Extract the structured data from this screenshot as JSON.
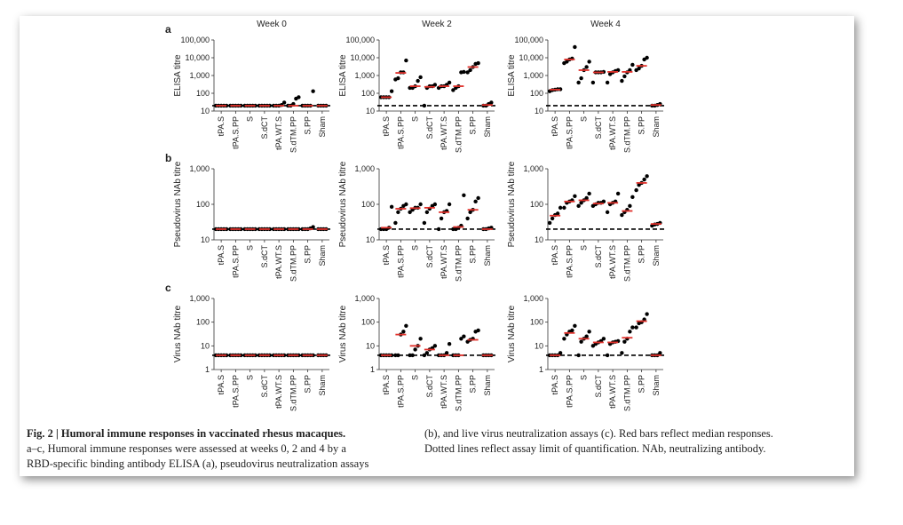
{
  "chart_data": [
    {
      "type": "dot",
      "title": "Week 0",
      "panel": "a",
      "ylabel": "ELISA titre",
      "categories": [
        "tPA.S",
        "tPA.S.PP",
        "S",
        "S.dCT",
        "tPA.WT.S",
        "S.dTM.PP",
        "S.PP",
        "Sham"
      ],
      "points": [
        [
          20,
          20,
          20,
          20,
          20
        ],
        [
          20,
          20,
          20,
          20,
          20
        ],
        [
          20,
          20,
          20,
          20,
          20
        ],
        [
          20,
          20,
          20,
          20,
          20
        ],
        [
          20,
          20,
          20,
          22,
          30
        ],
        [
          20,
          20,
          25,
          50,
          60
        ],
        [
          20,
          20,
          20,
          20,
          130
        ],
        [
          20,
          20,
          20,
          20
        ]
      ],
      "medians": [
        20,
        20,
        20,
        20,
        20,
        20,
        20,
        20
      ],
      "median_color": "#e0302a",
      "point_color": "#000000",
      "log": true,
      "reference_line": 20,
      "ylim": [
        10,
        100000
      ],
      "yticks": [
        10,
        100,
        {
          "value": 1000,
          "label": "1,000"
        },
        {
          "value": 10000,
          "label": "10,000"
        },
        {
          "value": 100000,
          "label": "100,000"
        }
      ]
    },
    {
      "type": "dot",
      "title": "Week 2",
      "ylabel": "ELISA titre",
      "categories": [
        "tPA.S",
        "tPA.S.PP",
        "S",
        "S.dCT",
        "tPA.WT.S",
        "S.dTM.PP",
        "S.PP",
        "Sham"
      ],
      "points": [
        [
          60,
          60,
          60,
          60,
          130
        ],
        [
          600,
          700,
          1500,
          1500,
          7000
        ],
        [
          200,
          200,
          250,
          500,
          800
        ],
        [
          20,
          200,
          250,
          250,
          300
        ],
        [
          200,
          250,
          250,
          300,
          400
        ],
        [
          150,
          200,
          250,
          1500,
          1600
        ],
        [
          1500,
          2000,
          3000,
          4500,
          5000
        ],
        [
          20,
          20,
          25,
          30
        ]
      ],
      "medians": [
        60,
        1400,
        250,
        230,
        250,
        250,
        3000,
        22
      ],
      "median_color": "#e0302a",
      "point_color": "#000000",
      "log": true,
      "reference_line": 20,
      "ylim": [
        10,
        100000
      ],
      "yticks": [
        10,
        100,
        {
          "value": 1000,
          "label": "1,000"
        },
        {
          "value": 10000,
          "label": "10,000"
        },
        {
          "value": 100000,
          "label": "100,000"
        }
      ]
    },
    {
      "type": "dot",
      "title": "Week 4",
      "ylabel": "ELISA titre",
      "categories": [
        "tPA.S",
        "tPA.S.PP",
        "S",
        "S.dCT",
        "tPA.WT.S",
        "S.dTM.PP",
        "S.PP",
        "Sham"
      ],
      "points": [
        [
          130,
          150,
          160,
          170,
          170
        ],
        [
          5000,
          6000,
          8000,
          9000,
          40000
        ],
        [
          400,
          700,
          2000,
          3000,
          6000
        ],
        [
          400,
          1500,
          1500,
          1500,
          1600
        ],
        [
          400,
          1200,
          1500,
          1800,
          2000
        ],
        [
          500,
          900,
          1500,
          2000,
          4000
        ],
        [
          2000,
          2500,
          3500,
          8000,
          10000
        ],
        [
          20,
          20,
          22,
          25
        ]
      ],
      "medians": [
        160,
        8000,
        2000,
        1500,
        1600,
        1600,
        3500,
        22
      ],
      "median_color": "#e0302a",
      "point_color": "#000000",
      "log": true,
      "reference_line": 20,
      "ylim": [
        10,
        100000
      ],
      "yticks": [
        10,
        100,
        {
          "value": 1000,
          "label": "1,000"
        },
        {
          "value": 10000,
          "label": "10,000"
        },
        {
          "value": 100000,
          "label": "100,000"
        }
      ]
    },
    {
      "type": "dot",
      "panel": "b",
      "ylabel": "Pseudovirus NAb titre",
      "categories": [
        "tPA.S",
        "tPA.S.PP",
        "S",
        "S.dCT",
        "tPA.WT.S",
        "S.dTM.PP",
        "S.PP",
        "Sham"
      ],
      "points": [
        [
          20,
          20,
          20,
          20,
          20
        ],
        [
          20,
          20,
          20,
          20,
          20
        ],
        [
          20,
          20,
          20,
          20,
          20
        ],
        [
          20,
          20,
          20,
          20,
          20
        ],
        [
          20,
          20,
          20,
          20,
          20
        ],
        [
          20,
          20,
          20,
          20,
          20
        ],
        [
          20,
          20,
          20,
          21,
          23
        ],
        [
          20,
          20,
          20,
          20
        ]
      ],
      "medians": [
        20,
        20,
        20,
        20,
        20,
        20,
        20,
        20
      ],
      "median_color": "#e0302a",
      "point_color": "#000000",
      "log": true,
      "reference_line": 20,
      "ylim": [
        10,
        1000
      ],
      "yticks": [
        10,
        100,
        {
          "value": 1000,
          "label": "1,000"
        }
      ]
    },
    {
      "type": "dot",
      "ylabel": "Pseudovirus NAb titre",
      "categories": [
        "tPA.S",
        "tPA.S.PP",
        "S",
        "S.dCT",
        "tPA.WT.S",
        "S.dTM.PP",
        "S.PP",
        "Sham"
      ],
      "points": [
        [
          20,
          20,
          20,
          22,
          85
        ],
        [
          30,
          60,
          75,
          90,
          100
        ],
        [
          60,
          70,
          80,
          80,
          100
        ],
        [
          30,
          60,
          75,
          90,
          100
        ],
        [
          20,
          40,
          60,
          65,
          100
        ],
        [
          20,
          20,
          22,
          25,
          180
        ],
        [
          40,
          60,
          70,
          120,
          150
        ],
        [
          20,
          20,
          21,
          22
        ]
      ],
      "medians": [
        22,
        75,
        78,
        80,
        60,
        23,
        70,
        20
      ],
      "median_color": "#e0302a",
      "point_color": "#000000",
      "log": true,
      "reference_line": 20,
      "ylim": [
        10,
        1000
      ],
      "yticks": [
        10,
        100,
        {
          "value": 1000,
          "label": "1,000"
        }
      ]
    },
    {
      "type": "dot",
      "ylabel": "Pseudovirus NAb titre",
      "categories": [
        "tPA.S",
        "tPA.S.PP",
        "S",
        "S.dCT",
        "tPA.WT.S",
        "S.dTM.PP",
        "S.PP",
        "Sham"
      ],
      "points": [
        [
          30,
          40,
          50,
          55,
          80
        ],
        [
          80,
          110,
          120,
          130,
          170
        ],
        [
          90,
          110,
          130,
          150,
          200
        ],
        [
          90,
          100,
          110,
          110,
          120
        ],
        [
          60,
          100,
          110,
          120,
          200
        ],
        [
          50,
          60,
          70,
          90,
          160
        ],
        [
          250,
          350,
          400,
          500,
          620
        ],
        [
          25,
          27,
          28,
          30
        ]
      ],
      "medians": [
        48,
        120,
        130,
        105,
        110,
        65,
        400,
        28
      ],
      "median_color": "#e0302a",
      "point_color": "#000000",
      "log": true,
      "reference_line": 20,
      "ylim": [
        10,
        1000
      ],
      "yticks": [
        10,
        100,
        {
          "value": 1000,
          "label": "1,000"
        }
      ]
    },
    {
      "type": "dot",
      "panel": "c",
      "ylabel": "Virus NAb titre",
      "categories": [
        "tPA.S",
        "tPA.S.PP",
        "S",
        "S.dCT",
        "tPA.WT.S",
        "S.dTM.PP",
        "S.PP",
        "Sham"
      ],
      "points": [
        [
          4,
          4,
          4,
          4,
          4
        ],
        [
          4,
          4,
          4,
          4,
          4
        ],
        [
          4,
          4,
          4,
          4,
          4
        ],
        [
          4,
          4,
          4,
          4,
          4
        ],
        [
          4,
          4,
          4,
          4,
          4
        ],
        [
          4,
          4,
          4,
          4,
          4
        ],
        [
          4,
          4,
          4,
          4,
          4
        ],
        [
          4,
          4,
          4,
          4
        ]
      ],
      "medians": [
        4,
        4,
        4,
        4,
        4,
        4,
        4,
        4
      ],
      "median_color": "#e0302a",
      "point_color": "#000000",
      "log": true,
      "reference_line": 4,
      "ylim": [
        1,
        1000
      ],
      "yticks": [
        1,
        10,
        100,
        {
          "value": 1000,
          "label": "1,000"
        }
      ]
    },
    {
      "type": "dot",
      "ylabel": "Virus NAb titre",
      "categories": [
        "tPA.S",
        "tPA.S.PP",
        "S",
        "S.dCT",
        "tPA.WT.S",
        "S.dTM.PP",
        "S.PP",
        "Sham"
      ],
      "points": [
        [
          4,
          4,
          4,
          4,
          4
        ],
        [
          4,
          4,
          30,
          40,
          70
        ],
        [
          4,
          4,
          7,
          10,
          20
        ],
        [
          4,
          5,
          7,
          8,
          10
        ],
        [
          4,
          4,
          4,
          5,
          12
        ],
        [
          4,
          4,
          4,
          20,
          25
        ],
        [
          15,
          18,
          20,
          40,
          45
        ],
        [
          4,
          4,
          4,
          4
        ]
      ],
      "medians": [
        4,
        30,
        10,
        7,
        4,
        4,
        18,
        4
      ],
      "median_color": "#e0302a",
      "point_color": "#000000",
      "log": true,
      "reference_line": 4,
      "ylim": [
        1,
        1000
      ],
      "yticks": [
        1,
        10,
        100,
        {
          "value": 1000,
          "label": "1,000"
        }
      ]
    },
    {
      "type": "dot",
      "ylabel": "Virus NAb titre",
      "categories": [
        "tPA.S",
        "tPA.S.PP",
        "S",
        "S.dCT",
        "tPA.WT.S",
        "S.dTM.PP",
        "S.PP",
        "Sham"
      ],
      "points": [
        [
          4,
          4,
          4,
          4,
          5
        ],
        [
          20,
          30,
          40,
          45,
          70
        ],
        [
          4,
          15,
          20,
          25,
          40
        ],
        [
          10,
          12,
          14,
          16,
          20
        ],
        [
          4,
          12,
          14,
          15,
          16
        ],
        [
          5,
          15,
          20,
          40,
          60
        ],
        [
          60,
          90,
          100,
          130,
          220
        ],
        [
          4,
          4,
          4,
          5
        ]
      ],
      "medians": [
        4,
        35,
        20,
        14,
        14,
        22,
        110,
        4
      ],
      "median_color": "#e0302a",
      "point_color": "#000000",
      "log": true,
      "reference_line": 4,
      "ylim": [
        1,
        1000
      ],
      "yticks": [
        1,
        10,
        100,
        {
          "value": 1000,
          "label": "1,000"
        }
      ]
    }
  ],
  "caption": {
    "title": "Fig. 2 | Humoral immune responses in vaccinated rhesus macaques.",
    "left": [
      "a–c, Humoral immune responses were assessed at weeks 0, 2 and 4 by a",
      "RBD-specific binding antibody ELISA (a), pseudovirus neutralization assays"
    ],
    "right": [
      "(b), and live virus neutralization assays (c). Red bars reflect median responses.",
      "Dotted lines reflect assay limit of quantification. NAb, neutralizing antibody."
    ]
  }
}
